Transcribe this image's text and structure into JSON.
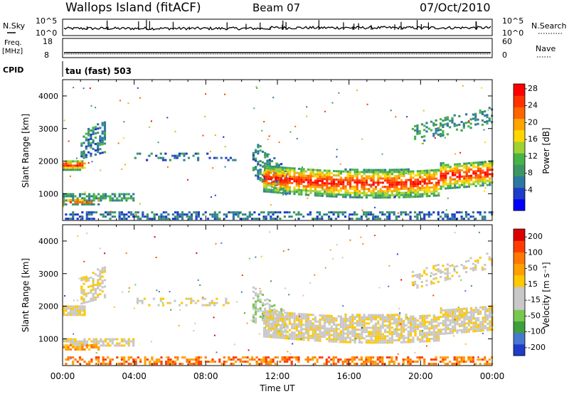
{
  "header": {
    "title": "Wallops Island (fitACF)",
    "beam": "Beam 07",
    "date": "07/Oct/2010"
  },
  "top_panels": {
    "nsky_label": "N.Sky",
    "nsky_ticks": [
      "10^5",
      "10^0"
    ],
    "nsearch_label": "N.Search",
    "nsearch_ticks": [
      "10^5",
      "10^0"
    ],
    "freq_label": "Freq.",
    "freq_unit": "[MHz]",
    "freq_ticks": [
      "18",
      "8"
    ],
    "nave_label": "Nave",
    "nave_ticks": [
      "60",
      "0"
    ],
    "cpid_label": "CPID",
    "cpid_value": "tau (fast) 503"
  },
  "chart_data": [
    {
      "type": "heatmap",
      "name": "power",
      "ylabel": "Slant Range [km]",
      "ylim": [
        180,
        4500
      ],
      "yticks": [
        "1000",
        "2000",
        "3000",
        "4000"
      ],
      "xlim": [
        0,
        24
      ],
      "colorbar_label": "Power [dB]",
      "colorbar_ticks": [
        "28",
        "24",
        "20",
        "16",
        "12",
        "8",
        "4"
      ],
      "colors": [
        "#0000ff",
        "#1e3cc8",
        "#2d78a0",
        "#3c9664",
        "#46b446",
        "#a0d232",
        "#ffd700",
        "#ffa500",
        "#ff6400",
        "#ff3200",
        "#ff0000"
      ]
    },
    {
      "type": "heatmap",
      "name": "velocity",
      "ylabel": "Slant Range [km]",
      "ylim": [
        180,
        4500
      ],
      "yticks": [
        "1000",
        "2000",
        "3000",
        "4000"
      ],
      "xlim": [
        0,
        24
      ],
      "xlabel": "Time UT",
      "xticks": [
        "00:00",
        "04:00",
        "08:00",
        "12:00",
        "16:00",
        "20:00",
        "00:00"
      ],
      "colorbar_label": "Velocity [m s⁻¹]",
      "colorbar_ticks": [
        "200",
        "100",
        "50",
        "15",
        "-15",
        "-50",
        "-100",
        "-200"
      ],
      "colors": [
        "#1e3cc8",
        "#4678d2",
        "#3ca03c",
        "#78c850",
        "#c8c8c8",
        "#c8c8c8",
        "#ffc800",
        "#ffa000",
        "#ff7800",
        "#ff3c00",
        "#dc0000"
      ]
    }
  ]
}
